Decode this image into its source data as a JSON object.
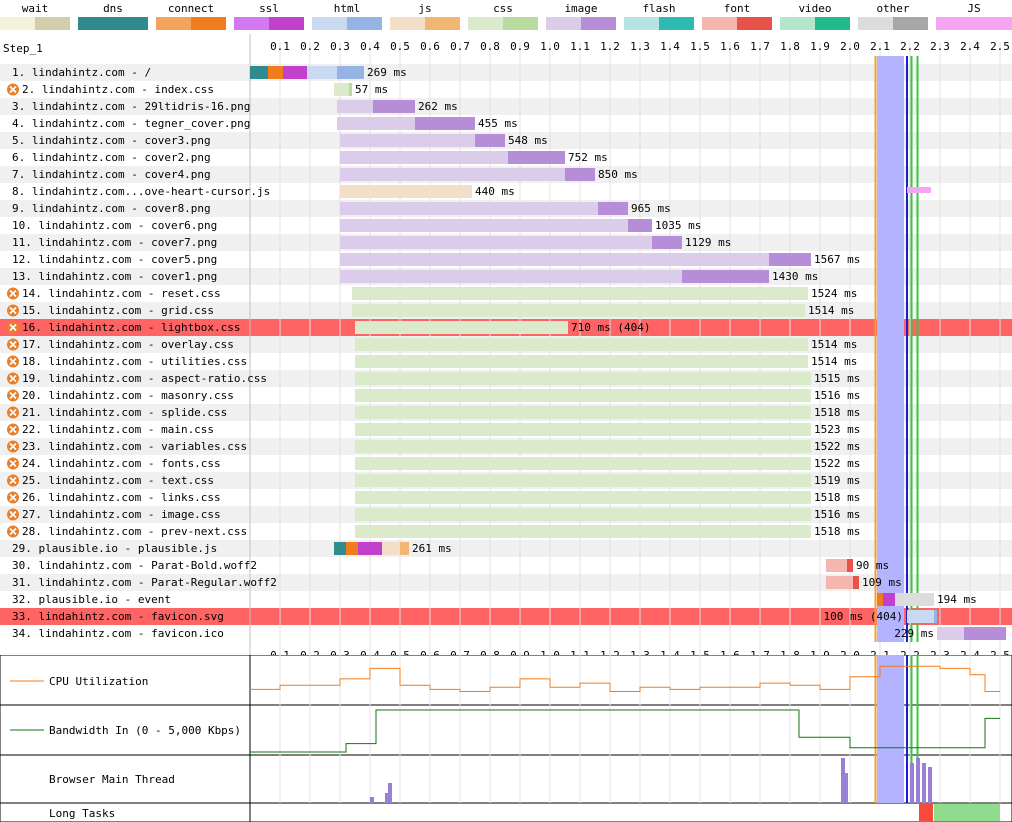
{
  "legend": [
    {
      "label": "wait",
      "light": "#f3f1da",
      "dark": "#d2cdaa"
    },
    {
      "label": "dns",
      "light": "#2f8b8e",
      "dark": "#2f8b8e"
    },
    {
      "label": "connect",
      "light": "#f3a35b",
      "dark": "#f07c1c"
    },
    {
      "label": "ssl",
      "light": "#d279f1",
      "dark": "#c141cd"
    },
    {
      "label": "html",
      "light": "#c9d9f2",
      "dark": "#95b4e3"
    },
    {
      "label": "js",
      "light": "#f3dfc8",
      "dark": "#f0b672"
    },
    {
      "label": "css",
      "light": "#dbeacb",
      "dark": "#b8dba0"
    },
    {
      "label": "image",
      "light": "#dbcdea",
      "dark": "#b68ed7"
    },
    {
      "label": "flash",
      "light": "#b7e3e3",
      "dark": "#2ebab2"
    },
    {
      "label": "font",
      "light": "#f5b6b0",
      "dark": "#e8524b"
    },
    {
      "label": "video",
      "light": "#b3e6cd",
      "dark": "#22b98b"
    },
    {
      "label": "other",
      "light": "#dcdcdc",
      "dark": "#a7a7a7"
    },
    {
      "label": "JS Execution",
      "light": "#f5a3f3",
      "dark": "#f5a3f3"
    }
  ],
  "step_label": "Step_1",
  "graphs": {
    "cpu_label": "CPU Utilization",
    "bw_label": "Bandwidth In (0 - 5,000 Kbps)",
    "main_label": "Browser Main Thread",
    "lt_label": "Long Tasks"
  },
  "chart_data": {
    "type": "waterfall",
    "x_unit": "seconds",
    "ticks": [
      "0.1",
      "0.2",
      "0.3",
      "0.4",
      "0.5",
      "0.6",
      "0.7",
      "0.8",
      "0.9",
      "1.0",
      "1.1",
      "1.2",
      "1.3",
      "1.4",
      "1.5",
      "1.6",
      "1.7",
      "1.8",
      "1.9",
      "2.0",
      "2.1",
      "2.2",
      "2.3",
      "2.4",
      "2.5"
    ],
    "xlim": [
      0,
      2.5
    ],
    "markers": [
      {
        "name": "start render",
        "t0": 2.09,
        "t1": 2.18,
        "color": "#b3b3ff"
      },
      {
        "name": "orange line",
        "t0": 2.085,
        "color": "#f3a12b"
      },
      {
        "name": "dom",
        "t0": 2.19,
        "color": "#1c1cd0"
      },
      {
        "name": "green 1",
        "t0": 2.205,
        "color": "#3cc640"
      },
      {
        "name": "green 2",
        "t0": 2.225,
        "color": "#3cc640"
      }
    ],
    "requests": [
      {
        "label": "1. lindahintz.com - /",
        "type": "html",
        "start": 0.0,
        "dns": 0.06,
        "connect": 0.05,
        "ssl": 0.08,
        "ttfb": 0.1,
        "dl": 0.09,
        "duration_label": "269 ms"
      },
      {
        "label": "2. lindahintz.com - index.css",
        "type": "css",
        "blocking": true,
        "start": 0.28,
        "ttfb": 0.05,
        "dl": 0.01,
        "duration_label": "57 ms"
      },
      {
        "label": "3. lindahintz.com - 29ltidris-16.png",
        "type": "image",
        "start": 0.29,
        "ttfb": 0.12,
        "dl": 0.14,
        "duration_label": "262 ms"
      },
      {
        "label": "4. lindahintz.com - tegner_cover.png",
        "type": "image",
        "start": 0.29,
        "ttfb": 0.26,
        "dl": 0.2,
        "duration_label": "455 ms"
      },
      {
        "label": "5. lindahintz.com - cover3.png",
        "type": "image",
        "start": 0.3,
        "ttfb": 0.45,
        "dl": 0.1,
        "duration_label": "548 ms"
      },
      {
        "label": "6. lindahintz.com - cover2.png",
        "type": "image",
        "start": 0.3,
        "ttfb": 0.56,
        "dl": 0.19,
        "duration_label": "752 ms"
      },
      {
        "label": "7. lindahintz.com - cover4.png",
        "type": "image",
        "start": 0.3,
        "ttfb": 0.75,
        "dl": 0.1,
        "duration_label": "850 ms"
      },
      {
        "label": "8. lindahintz.com...ove-heart-cursor.js",
        "type": "js",
        "start": 0.3,
        "ttfb": 0.44,
        "dl": 0.0,
        "duration_label": "440 ms"
      },
      {
        "label": "9. lindahintz.com - cover8.png",
        "type": "image",
        "start": 0.3,
        "ttfb": 0.86,
        "dl": 0.1,
        "duration_label": "965 ms"
      },
      {
        "label": "10. lindahintz.com - cover6.png",
        "type": "image",
        "start": 0.3,
        "ttfb": 0.96,
        "dl": 0.08,
        "duration_label": "1035 ms"
      },
      {
        "label": "11. lindahintz.com - cover7.png",
        "type": "image",
        "start": 0.3,
        "ttfb": 1.04,
        "dl": 0.1,
        "duration_label": "1129 ms"
      },
      {
        "label": "12. lindahintz.com - cover5.png",
        "type": "image",
        "start": 0.3,
        "ttfb": 1.43,
        "dl": 0.14,
        "duration_label": "1567 ms"
      },
      {
        "label": "13. lindahintz.com - cover1.png",
        "type": "image",
        "start": 0.3,
        "ttfb": 1.14,
        "dl": 0.29,
        "duration_label": "1430 ms"
      },
      {
        "label": "14. lindahintz.com - reset.css",
        "type": "css",
        "blocking": true,
        "start": 0.34,
        "ttfb": 1.52,
        "dl": 0.0,
        "duration_label": "1524 ms"
      },
      {
        "label": "15. lindahintz.com - grid.css",
        "type": "css",
        "blocking": true,
        "start": 0.34,
        "ttfb": 1.51,
        "dl": 0.0,
        "duration_label": "1514 ms"
      },
      {
        "label": "16. lindahintz.com - lightbox.css",
        "type": "css",
        "blocking": true,
        "error": true,
        "start": 0.35,
        "ttfb": 0.71,
        "dl": 0.0,
        "duration_label": "710 ms (404)"
      },
      {
        "label": "17. lindahintz.com - overlay.css",
        "type": "css",
        "blocking": true,
        "start": 0.35,
        "ttfb": 1.51,
        "dl": 0.0,
        "duration_label": "1514 ms"
      },
      {
        "label": "18. lindahintz.com - utilities.css",
        "type": "css",
        "blocking": true,
        "start": 0.35,
        "ttfb": 1.51,
        "dl": 0.0,
        "duration_label": "1514 ms"
      },
      {
        "label": "19. lindahintz.com - aspect-ratio.css",
        "type": "css",
        "blocking": true,
        "start": 0.35,
        "ttfb": 1.52,
        "dl": 0.0,
        "duration_label": "1515 ms"
      },
      {
        "label": "20. lindahintz.com - masonry.css",
        "type": "css",
        "blocking": true,
        "start": 0.35,
        "ttfb": 1.52,
        "dl": 0.0,
        "duration_label": "1516 ms"
      },
      {
        "label": "21. lindahintz.com - splide.css",
        "type": "css",
        "blocking": true,
        "start": 0.35,
        "ttfb": 1.52,
        "dl": 0.0,
        "duration_label": "1518 ms"
      },
      {
        "label": "22. lindahintz.com - main.css",
        "type": "css",
        "blocking": true,
        "start": 0.35,
        "ttfb": 1.52,
        "dl": 0.0,
        "duration_label": "1523 ms"
      },
      {
        "label": "23. lindahintz.com - variables.css",
        "type": "css",
        "blocking": true,
        "start": 0.35,
        "ttfb": 1.52,
        "dl": 0.0,
        "duration_label": "1522 ms"
      },
      {
        "label": "24. lindahintz.com - fonts.css",
        "type": "css",
        "blocking": true,
        "start": 0.35,
        "ttfb": 1.52,
        "dl": 0.0,
        "duration_label": "1522 ms"
      },
      {
        "label": "25. lindahintz.com - text.css",
        "type": "css",
        "blocking": true,
        "start": 0.35,
        "ttfb": 1.52,
        "dl": 0.0,
        "duration_label": "1519 ms"
      },
      {
        "label": "26. lindahintz.com - links.css",
        "type": "css",
        "blocking": true,
        "start": 0.35,
        "ttfb": 1.52,
        "dl": 0.0,
        "duration_label": "1518 ms"
      },
      {
        "label": "27. lindahintz.com - image.css",
        "type": "css",
        "blocking": true,
        "start": 0.35,
        "ttfb": 1.52,
        "dl": 0.0,
        "duration_label": "1516 ms"
      },
      {
        "label": "28. lindahintz.com - prev-next.css",
        "type": "css",
        "blocking": true,
        "start": 0.35,
        "ttfb": 1.52,
        "dl": 0.0,
        "duration_label": "1518 ms"
      },
      {
        "label": "29. plausible.io - plausible.js",
        "type": "js",
        "start": 0.28,
        "dns": 0.04,
        "connect": 0.04,
        "ssl": 0.08,
        "ttfb": 0.06,
        "dl": 0.03,
        "duration_label": "261 ms"
      },
      {
        "label": "30. lindahintz.com - Parat-Bold.woff2",
        "type": "font",
        "start": 1.92,
        "ttfb": 0.07,
        "dl": 0.02,
        "duration_label": "90 ms"
      },
      {
        "label": "31. lindahintz.com - Parat-Regular.woff2",
        "type": "font",
        "start": 1.92,
        "ttfb": 0.09,
        "dl": 0.02,
        "duration_label": "109 ms"
      },
      {
        "label": "32. plausible.io - event",
        "type": "other",
        "start": 2.09,
        "dns": 0.0,
        "connect": 0.02,
        "ssl": 0.04,
        "ttfb": 0.13,
        "dl": 0.0,
        "duration_label": "194 ms"
      },
      {
        "label": "33. lindahintz.com - favicon.svg",
        "type": "html",
        "error": true,
        "start": 2.19,
        "ttfb": 0.09,
        "dl": 0.01,
        "duration_label": "100 ms (404)",
        "label_left": true
      },
      {
        "label": "34. lindahintz.com - favicon.ico",
        "type": "image",
        "start": 2.29,
        "ttfb": 0.09,
        "dl": 0.14,
        "duration_label": "229 ms",
        "label_left": true
      }
    ],
    "cpu_percent": [
      60,
      60,
      60,
      60,
      60,
      60,
      60,
      60,
      60,
      60,
      60,
      60,
      60,
      60,
      60,
      60,
      60,
      60,
      60,
      60,
      30,
      30,
      30,
      30,
      30,
      30,
      30,
      30,
      30,
      30,
      60,
      60,
      60,
      60,
      60,
      60,
      60,
      60,
      60,
      60,
      30,
      30,
      30,
      30,
      30,
      30,
      30,
      30,
      30,
      30,
      20,
      20,
      20,
      20,
      20,
      20,
      20,
      20,
      20,
      20,
      30,
      30,
      30,
      30,
      30,
      30,
      30,
      30,
      30,
      30,
      60,
      60,
      60,
      60,
      60,
      60,
      60,
      60,
      60,
      60,
      70,
      70,
      70,
      70,
      70,
      70,
      70,
      70,
      70,
      70,
      30,
      30,
      30,
      30,
      30,
      30,
      30,
      30,
      30,
      30,
      10,
      10,
      10,
      10,
      10,
      10,
      10,
      10,
      10,
      10,
      40,
      40,
      40,
      40,
      40,
      40,
      40,
      40,
      40,
      40,
      30,
      30,
      30,
      30,
      30,
      30,
      30,
      30,
      30,
      30,
      30,
      30,
      30,
      30,
      30,
      30,
      30,
      30,
      30,
      30,
      30,
      30,
      30,
      30,
      30,
      30,
      30,
      30,
      30,
      30,
      20,
      20,
      20,
      20,
      20,
      20,
      20,
      20,
      20,
      20,
      40,
      40,
      40,
      40,
      40,
      40,
      40,
      40,
      40,
      40,
      40,
      40,
      40,
      40,
      40,
      40,
      40,
      40,
      40,
      40
    ],
    "cpu_steps": [
      [
        0,
        0.1,
        30
      ],
      [
        0.1,
        0.3,
        40
      ],
      [
        0.3,
        0.4,
        55
      ],
      [
        0.4,
        0.5,
        80
      ],
      [
        0.5,
        0.6,
        40
      ],
      [
        0.6,
        0.7,
        30
      ],
      [
        0.7,
        0.8,
        25
      ],
      [
        0.8,
        0.9,
        35
      ],
      [
        0.9,
        1.0,
        55
      ],
      [
        1.0,
        1.1,
        35
      ],
      [
        1.1,
        1.2,
        45
      ],
      [
        1.2,
        1.3,
        25
      ],
      [
        1.3,
        1.4,
        35
      ],
      [
        1.4,
        1.5,
        30
      ],
      [
        1.5,
        1.6,
        35
      ],
      [
        1.6,
        1.7,
        35
      ],
      [
        1.7,
        1.8,
        45
      ],
      [
        1.8,
        1.9,
        40
      ],
      [
        1.9,
        2.0,
        30
      ],
      [
        2.0,
        2.1,
        60
      ],
      [
        2.1,
        2.3,
        85
      ],
      [
        2.3,
        2.4,
        80
      ],
      [
        2.4,
        2.45,
        65
      ],
      [
        2.45,
        2.5,
        25
      ]
    ],
    "bw_steps": [
      [
        0,
        0.1,
        0
      ],
      [
        0.1,
        0.32,
        0
      ],
      [
        0.32,
        0.42,
        20
      ],
      [
        0.42,
        0.5,
        100
      ],
      [
        0.5,
        1.83,
        100
      ],
      [
        1.83,
        1.9,
        35
      ],
      [
        1.9,
        2.0,
        35
      ],
      [
        2.0,
        2.08,
        10
      ],
      [
        2.08,
        2.45,
        10
      ],
      [
        2.45,
        2.5,
        80
      ]
    ]
  }
}
